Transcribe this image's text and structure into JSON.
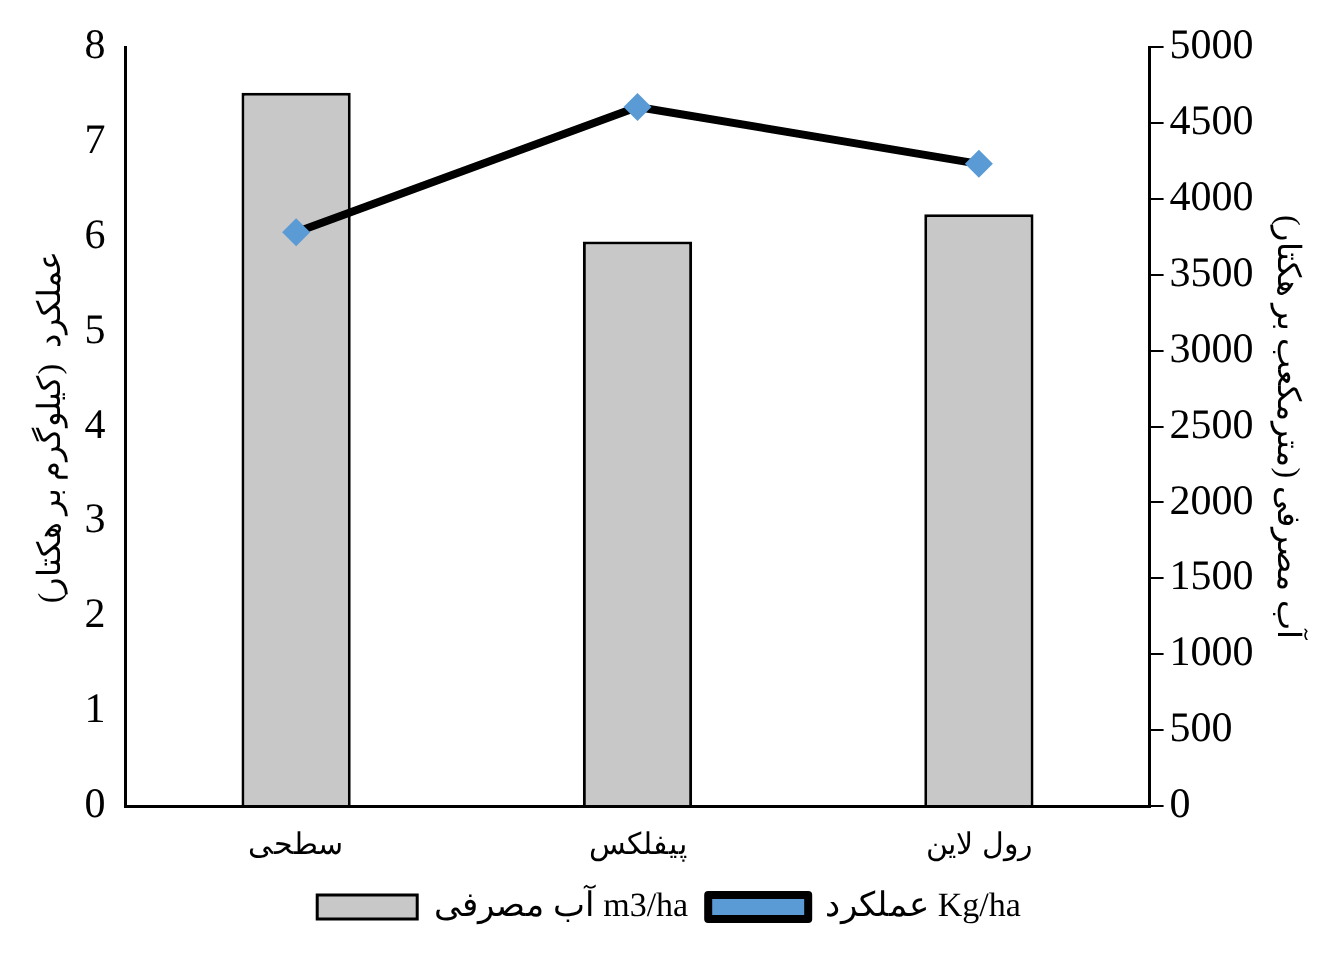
{
  "chart_data": {
    "type": "bar",
    "categories": [
      "سطحی",
      "پیفلکس",
      "رول لاین"
    ],
    "ylabel": "عملکرد  (کیلوگرم بر هکتار)",
    "y2label": "آب مصرفی (مترمکعب بر هکتار)",
    "ylim": [
      0,
      8
    ],
    "yticks": [
      0,
      1,
      2,
      3,
      4,
      5,
      6,
      7,
      8
    ],
    "y2lim": [
      0,
      5000
    ],
    "y2ticks": [
      0,
      500,
      1000,
      1500,
      2000,
      2500,
      3000,
      3500,
      4000,
      4500,
      5000
    ],
    "grid": false,
    "legend": "bottom",
    "series": [
      {
        "name": "آب مصرفی m3/ha",
        "axis": "y2",
        "color": "#c8c8c8",
        "values": [
          4700,
          3720,
          3900
        ]
      },
      {
        "name": "عملکرد Kg/ha",
        "type": "line",
        "axis": "y",
        "color": "#000000",
        "colors": [
          "#5b9bd5",
          "#5b9bd5",
          "#5b9bd5"
        ],
        "marker": "diamond",
        "values": [
          6.05,
          7.37,
          6.77
        ]
      }
    ]
  }
}
